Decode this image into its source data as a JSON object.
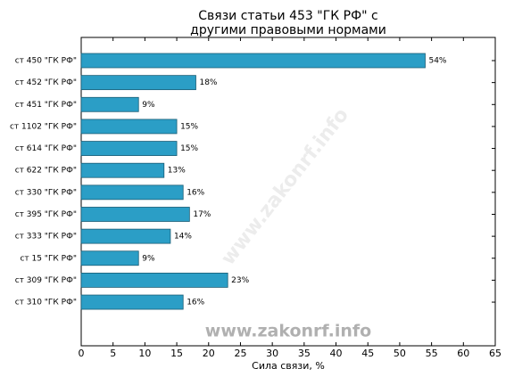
{
  "chart_data": {
    "type": "barh",
    "title": [
      "Связи статьи 453 \"ГК РФ\" с",
      "другими правовыми нормами"
    ],
    "xlabel": "Сила связи, %",
    "watermark": "www.zakonrf.info",
    "categories": [
      "ст 450 \"ГК РФ\"",
      "ст 452 \"ГК РФ\"",
      "ст 451 \"ГК РФ\"",
      "ст 1102 \"ГК РФ\"",
      "ст 614 \"ГК РФ\"",
      "ст 622 \"ГК РФ\"",
      "ст 330 \"ГК РФ\"",
      "ст 395 \"ГК РФ\"",
      "ст 333 \"ГК РФ\"",
      "ст 15 \"ГК РФ\"",
      "ст 309 \"ГК РФ\"",
      "ст 310 \"ГК РФ\""
    ],
    "values": [
      54,
      18,
      9,
      15,
      15,
      13,
      16,
      17,
      14,
      9,
      23,
      16
    ],
    "value_labels": [
      "54%",
      "18%",
      "9%",
      "15%",
      "15%",
      "13%",
      "16%",
      "17%",
      "14%",
      "9%",
      "23%",
      "16%"
    ],
    "color": "#2b9ec6",
    "xlim": [
      0,
      65
    ],
    "xticks": [
      0,
      5,
      10,
      15,
      20,
      25,
      30,
      35,
      40,
      45,
      50,
      55,
      60,
      65
    ]
  }
}
